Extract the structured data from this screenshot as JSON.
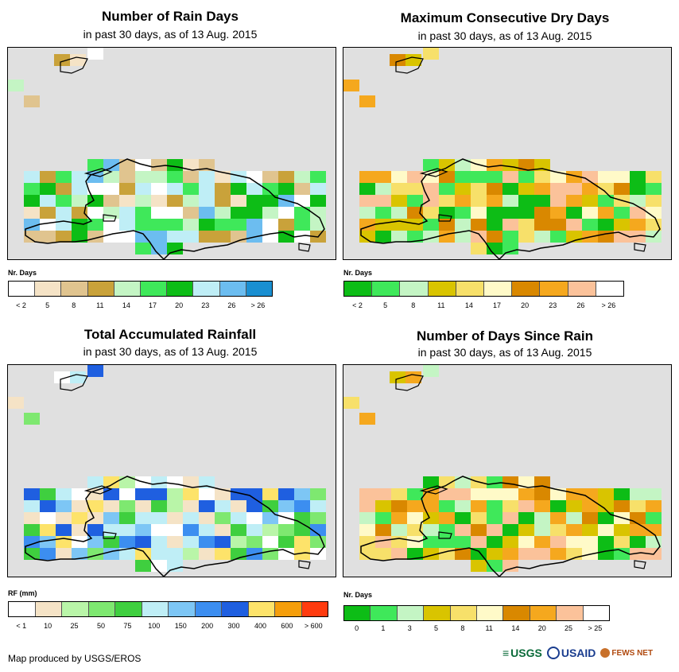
{
  "panels": [
    {
      "id": "rain_days",
      "title": "Number of Rain Days",
      "subtitle": "in past 30 days, as of 13 Aug. 2015",
      "legend_label": "Nr. Days",
      "legend_colors": [
        "#ffffff",
        "#f5e3c6",
        "#e0c48f",
        "#c9a23a",
        "#c4f5c4",
        "#3fe85a",
        "#0dbd16",
        "#bfeef6",
        "#6cbdf0",
        "#1a8fd1"
      ],
      "legend_ticks": [
        "< 2",
        "5",
        "8",
        "11",
        "14",
        "17",
        "20",
        "23",
        "26",
        "> 26"
      ],
      "palette": [
        "#ffffff",
        "#f5e3c6",
        "#e0c48f",
        "#c9a23a",
        "#c4f5c4",
        "#3fe85a",
        "#0dbd16",
        "#bfeef6",
        "#6cbdf0"
      ]
    },
    {
      "id": "max_dry_days",
      "title": "Maximum Consecutive Dry Days",
      "subtitle": "in past 30 days, as of 13 Aug. 2015",
      "legend_label": "Nr. Days",
      "legend_colors": [
        "#0dbd16",
        "#3fe85a",
        "#c4f5c4",
        "#d9c400",
        "#f7e06a",
        "#fffac8",
        "#d98800",
        "#f5a81e",
        "#fbc29a",
        "#ffffff"
      ],
      "legend_ticks": [
        "< 2",
        "5",
        "8",
        "11",
        "14",
        "17",
        "20",
        "23",
        "26",
        "> 26"
      ],
      "palette": [
        "#0dbd16",
        "#3fe85a",
        "#c4f5c4",
        "#d9c400",
        "#f7e06a",
        "#fffac8",
        "#d98800",
        "#f5a81e",
        "#fbc29a"
      ]
    },
    {
      "id": "total_rainfall",
      "title": "Total Accumulated Rainfall",
      "subtitle": "in past 30 days, as of 13 Aug. 2015",
      "legend_label": "RF (mm)",
      "legend_colors": [
        "#ffffff",
        "#f5e3c6",
        "#b9f5a8",
        "#7ee870",
        "#3fcf3f",
        "#bfeef6",
        "#7dc6f5",
        "#3c8ef0",
        "#1f5fe0",
        "#fde36a",
        "#f59e0b",
        "#ff3b0f"
      ],
      "legend_ticks": [
        "< 1",
        "10",
        "25",
        "50",
        "75",
        "100",
        "150",
        "200",
        "300",
        "400",
        "600",
        "> 600"
      ],
      "palette": [
        "#ffffff",
        "#f5e3c6",
        "#b9f5a8",
        "#7ee870",
        "#3fcf3f",
        "#bfeef6",
        "#7dc6f5",
        "#3c8ef0",
        "#1f5fe0",
        "#fde36a"
      ]
    },
    {
      "id": "days_since_rain",
      "title": "Number of Days Since Rain",
      "subtitle": "in past 30 days, as of 13 Aug. 2015",
      "legend_label": "Nr. Days",
      "legend_colors": [
        "#0dbd16",
        "#3fe85a",
        "#c4f5c4",
        "#d9c400",
        "#f7e06a",
        "#fffac8",
        "#d98800",
        "#f5a81e",
        "#fbc29a",
        "#ffffff"
      ],
      "legend_ticks": [
        "0",
        "1",
        "3",
        "5",
        "8",
        "11",
        "14",
        "20",
        "25",
        "> 25"
      ],
      "palette": [
        "#0dbd16",
        "#3fe85a",
        "#c4f5c4",
        "#d9c400",
        "#f7e06a",
        "#fffac8",
        "#d98800",
        "#f5a81e",
        "#fbc29a"
      ]
    }
  ],
  "credit": "Map produced by USGS/EROS",
  "logos": {
    "usgs": "USGS",
    "usaid": "USAID",
    "fews": "FEWS NET"
  }
}
